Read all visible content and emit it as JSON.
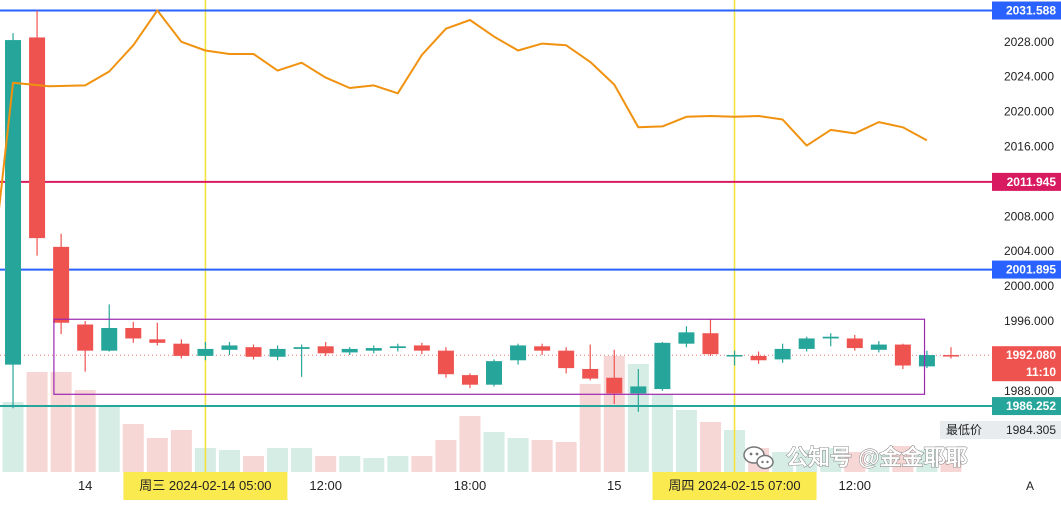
{
  "chart_data": {
    "type": "candlestick",
    "price_axis": {
      "ticks": [
        "2028.000",
        "2024.000",
        "2020.000",
        "2016.000",
        "2008.000",
        "2004.000",
        "2000.000",
        "1996.000",
        "1988.000"
      ],
      "tick_values": [
        2028,
        2024,
        2020,
        2016,
        2008,
        2004,
        2000,
        1996,
        1988
      ]
    },
    "time_axis": {
      "ticks": [
        {
          "label": "14",
          "x_index": 3.5
        },
        {
          "label": "12:00",
          "x_index": 13.5
        },
        {
          "label": "18:00",
          "x_index": 19.5
        },
        {
          "label": "15",
          "x_index": 25.5
        },
        {
          "label": "12:00",
          "x_index": 35.5
        }
      ],
      "highlights": [
        {
          "label": "周三 2024-02-14   05:00",
          "x_index": 8.5
        },
        {
          "label": "周四 2024-02-15   07:00",
          "x_index": 30.5
        }
      ]
    },
    "price_lines": [
      {
        "label": "2031.588",
        "value": 2031.588,
        "color": "#2962ff"
      },
      {
        "label": "2011.945",
        "value": 2011.945,
        "color": "#d81b60"
      },
      {
        "label": "2001.895",
        "value": 2001.895,
        "color": "#2962ff"
      },
      {
        "label": "1986.252",
        "value": 1986.252,
        "color": "#26a69a"
      }
    ],
    "current_price": {
      "label": "1992.080",
      "countdown": "11:10",
      "value": 1992.08,
      "color": "#ef5350"
    },
    "low_marker": {
      "label": "最低价",
      "value_label": "1984.305",
      "value": 1984.305
    },
    "range_box": {
      "from_index": 2.2,
      "to_index": 38.4,
      "high": 1996.2,
      "low": 1987.6,
      "color": "#9c27b0"
    },
    "candles": [
      [
        1991.0,
        2029.0,
        1986.0,
        2028.2
      ],
      [
        2028.5,
        2031.588,
        2003.5,
        2005.5
      ],
      [
        2004.5,
        2006.0,
        1994.5,
        1995.8
      ],
      [
        1995.6,
        1996.0,
        1990.2,
        1992.6
      ],
      [
        1992.6,
        1997.9,
        1992.5,
        1995.2
      ],
      [
        1995.2,
        1995.9,
        1993.5,
        1994.0
      ],
      [
        1993.9,
        1995.8,
        1993.2,
        1993.5
      ],
      [
        1993.4,
        1993.9,
        1991.7,
        1992.0
      ],
      [
        1992.0,
        1993.6,
        1991.5,
        1992.8
      ],
      [
        1992.7,
        1993.6,
        1992.1,
        1993.2
      ],
      [
        1993.0,
        1993.3,
        1991.6,
        1991.9
      ],
      [
        1991.9,
        1993.2,
        1991.5,
        1992.8
      ],
      [
        1992.8,
        1993.3,
        1989.6,
        1993.0
      ],
      [
        1993.1,
        1993.6,
        1992.0,
        1992.3
      ],
      [
        1992.4,
        1993.0,
        1992.1,
        1992.8
      ],
      [
        1992.6,
        1993.2,
        1992.3,
        1992.9
      ],
      [
        1992.9,
        1993.4,
        1992.5,
        1993.1
      ],
      [
        1993.2,
        1993.5,
        1992.2,
        1992.6
      ],
      [
        1992.6,
        1993.0,
        1989.5,
        1989.9
      ],
      [
        1989.8,
        1990.0,
        1988.3,
        1988.7
      ],
      [
        1988.7,
        1991.6,
        1988.5,
        1991.4
      ],
      [
        1991.5,
        1993.4,
        1991.0,
        1993.2
      ],
      [
        1993.1,
        1993.4,
        1992.1,
        1992.6
      ],
      [
        1992.6,
        1993.0,
        1990.0,
        1990.6
      ],
      [
        1990.5,
        1993.3,
        1989.2,
        1989.4
      ],
      [
        1989.5,
        1992.7,
        1986.5,
        1987.7
      ],
      [
        1987.7,
        1990.5,
        1985.6,
        1988.5
      ],
      [
        1988.2,
        1993.6,
        1988.0,
        1993.5
      ],
      [
        1993.4,
        1995.4,
        1993.0,
        1994.7
      ],
      [
        1994.6,
        1996.2,
        1992.0,
        1992.2
      ],
      [
        1992.0,
        1992.6,
        1990.9,
        1992.1
      ],
      [
        1992.0,
        1992.5,
        1991.1,
        1991.5
      ],
      [
        1991.6,
        1993.4,
        1991.2,
        1992.8
      ],
      [
        1992.8,
        1994.2,
        1992.5,
        1994.0
      ],
      [
        1994.0,
        1994.6,
        1993.1,
        1994.2
      ],
      [
        1994.0,
        1994.4,
        1992.6,
        1992.9
      ],
      [
        1992.7,
        1993.7,
        1992.4,
        1993.3
      ],
      [
        1993.3,
        1993.4,
        1990.5,
        1990.9
      ],
      [
        1990.8,
        1992.6,
        1990.6,
        1992.1
      ],
      [
        1992.1,
        1993.0,
        1991.7,
        1992.08
      ]
    ],
    "overlay_line": {
      "color": "#f0920f",
      "points": [
        [
          -1.0,
          1986.0
        ],
        [
          0.5,
          2023.3
        ],
        [
          2.0,
          2022.9
        ],
        [
          3.5,
          2023.0
        ],
        [
          4.5,
          2024.6
        ],
        [
          5.5,
          2027.6
        ],
        [
          6.5,
          2031.6
        ],
        [
          7.5,
          2028.0
        ],
        [
          8.5,
          2027.0
        ],
        [
          9.5,
          2026.6
        ],
        [
          10.5,
          2026.6
        ],
        [
          11.5,
          2024.7
        ],
        [
          12.5,
          2025.6
        ],
        [
          13.5,
          2023.9
        ],
        [
          14.5,
          2022.7
        ],
        [
          15.5,
          2023.0
        ],
        [
          16.5,
          2022.1
        ],
        [
          17.5,
          2026.5
        ],
        [
          18.5,
          2029.5
        ],
        [
          19.5,
          2030.5
        ],
        [
          20.5,
          2028.6
        ],
        [
          21.5,
          2027.0
        ],
        [
          22.5,
          2027.8
        ],
        [
          23.5,
          2027.6
        ],
        [
          24.5,
          2025.7
        ],
        [
          25.5,
          2023.1
        ],
        [
          26.5,
          2018.2
        ],
        [
          27.5,
          2018.3
        ],
        [
          28.5,
          2019.4
        ],
        [
          29.5,
          2019.5
        ],
        [
          30.5,
          2019.4
        ],
        [
          31.5,
          2019.5
        ],
        [
          32.5,
          2019.1
        ],
        [
          33.5,
          2016.1
        ],
        [
          34.5,
          2017.9
        ],
        [
          35.5,
          2017.5
        ],
        [
          36.5,
          2018.8
        ],
        [
          37.5,
          2018.2
        ],
        [
          38.5,
          2016.7
        ]
      ]
    },
    "volume": {
      "values": [
        70,
        100,
        100,
        82,
        66,
        48,
        34,
        42,
        24,
        22,
        16,
        24,
        24,
        16,
        16,
        14,
        16,
        16,
        32,
        56,
        40,
        34,
        32,
        30,
        88,
        116,
        108,
        78,
        62,
        50,
        42,
        24,
        20,
        22,
        24,
        20,
        18,
        26,
        22,
        12
      ],
      "up_color": "#d6ede6",
      "down_color": "#f7d7d6"
    }
  },
  "watermark": {
    "text": "公知号 @金金耶耶"
  },
  "corner": {
    "auto_label": "A"
  }
}
